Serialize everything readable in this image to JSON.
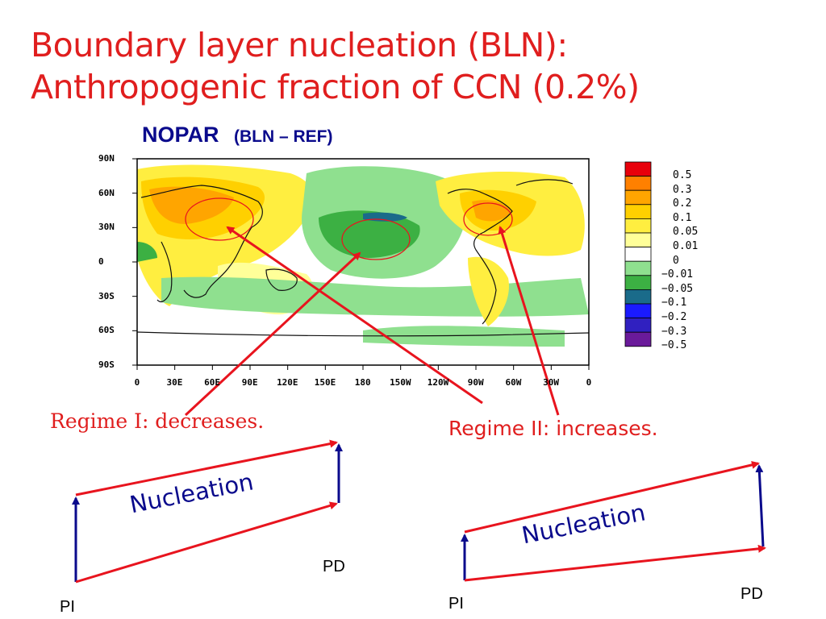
{
  "slide": {
    "title_line1": "Boundary layer nucleation (BLN):",
    "title_line2": "Anthropogenic fraction of CCN (0.2%)"
  },
  "map": {
    "heading_main": "NOPAR",
    "heading_sub": "(BLN – REF)",
    "lat_labels": [
      "90N",
      "60N",
      "30N",
      "0",
      "30S",
      "60S",
      "90S"
    ],
    "lon_labels": [
      "0",
      "30E",
      "60E",
      "90E",
      "120E",
      "150E",
      "180",
      "150W",
      "120W",
      "90W",
      "60W",
      "30W",
      "0"
    ]
  },
  "legend": {
    "labels": [
      "0.5",
      "0.3",
      "0.2",
      "0.1",
      "0.05",
      "0.01",
      "0",
      "−0.01",
      "−0.05",
      "−0.1",
      "−0.2",
      "−0.3",
      "−0.5"
    ],
    "colors": [
      "#e8000b",
      "#ff8000",
      "#ffa500",
      "#ffd000",
      "#ffee40",
      "#ffff99",
      "#ffffff",
      "#8fe08f",
      "#3cb043",
      "#1a6b8a",
      "#1a1aff",
      "#3020c0",
      "#6a1a9a"
    ]
  },
  "regimes": {
    "regime1": "Regime I: decreases.",
    "regime2": "Regime II:  increases."
  },
  "diagrams": {
    "left": {
      "label": "Nucleation",
      "pi": "PI",
      "pd": "PD"
    },
    "right": {
      "label": "Nucleation",
      "pi": "PI",
      "pd": "PD"
    }
  },
  "colors": {
    "title": "#e01e1e",
    "heading": "#0a0a8c",
    "arrow_red": "#e8141e",
    "arrow_blue": "#0a0a8c"
  }
}
